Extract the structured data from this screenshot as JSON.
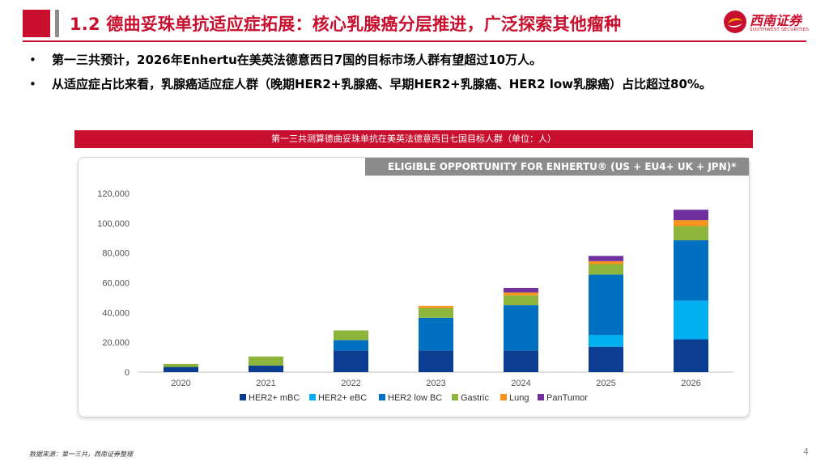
{
  "header": {
    "title": "1.2 德曲妥珠单抗适应症拓展：核心乳腺癌分层推进，广泛探索其他瘤种"
  },
  "logo": {
    "name_cn": "西南证券",
    "name_en": "SOUTHWEST SECURITIES",
    "colors": {
      "brand": "#c8102e",
      "accent": "#f5b400"
    }
  },
  "bullets": [
    {
      "marker": "•",
      "text": "第一三共预计，2026年Enhertu在美英法德意西日7国的目标市场人群有望超过10万人。"
    },
    {
      "marker": "•",
      "text": "从适应症占比来看，乳腺癌适应症人群（晚期HER2+乳腺癌、早期HER2+乳腺癌、HER2  low乳腺癌）占比超过80%。"
    }
  ],
  "banner": {
    "text": "第一三共测算德曲妥珠单抗在美英法德意西日七国目标人群（单位：人）"
  },
  "chart_header": {
    "text": "ELIGIBLE OPPORTUNITY FOR ENHERTU® (US + EU4+ UK + JPN)*"
  },
  "chart_data": {
    "type": "bar",
    "stacked": true,
    "title": "ELIGIBLE OPPORTUNITY FOR ENHERTU® (US + EU4+ UK + JPN)*",
    "categories": [
      "2020",
      "2021",
      "2022",
      "2023",
      "2024",
      "2025",
      "2026"
    ],
    "series": [
      {
        "name": "HER2+ mBC",
        "color": "#0b3d91",
        "values": [
          3500,
          4500,
          14500,
          14500,
          14500,
          17000,
          22000
        ]
      },
      {
        "name": "HER2+ eBC",
        "color": "#00b0f0",
        "values": [
          0,
          0,
          0,
          0,
          0,
          8000,
          26000
        ]
      },
      {
        "name": "HER2 low BC",
        "color": "#0070c0",
        "values": [
          0,
          0,
          7000,
          22000,
          30500,
          40500,
          40500
        ]
      },
      {
        "name": "Gastric",
        "color": "#8db53c",
        "values": [
          2000,
          6000,
          6500,
          6500,
          6500,
          7000,
          9500
        ]
      },
      {
        "name": "Lung",
        "color": "#f7941d",
        "values": [
          0,
          0,
          0,
          1500,
          2000,
          2000,
          4000
        ]
      },
      {
        "name": "PanTumor",
        "color": "#7030a0",
        "values": [
          0,
          0,
          0,
          0,
          3000,
          3500,
          7000
        ]
      }
    ],
    "ylim": [
      0,
      120000
    ],
    "yticks": [
      0,
      20000,
      40000,
      60000,
      80000,
      100000,
      120000
    ],
    "ytick_labels": [
      "0",
      "20,000",
      "40,000",
      "60,000",
      "80,000",
      "100,000",
      "120,000"
    ],
    "xlabel": "",
    "ylabel": "",
    "grid": false,
    "legend_position": "bottom"
  },
  "footnote": {
    "text": "数据来源：第一三共，西南证券整理"
  },
  "page_number": "4"
}
